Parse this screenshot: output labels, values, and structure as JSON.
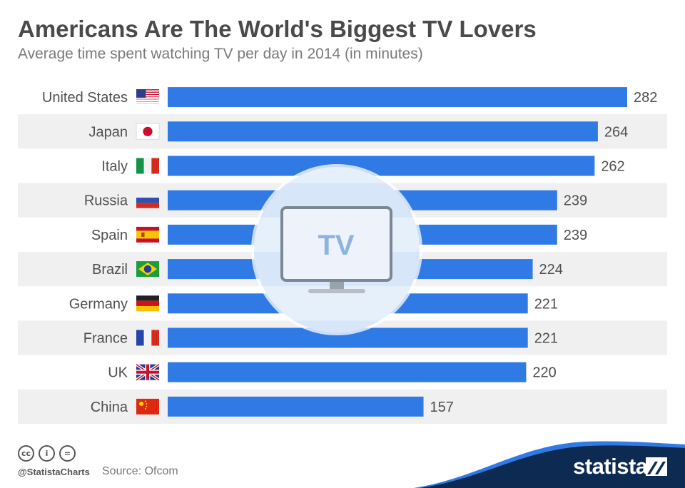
{
  "header": {
    "title": "Americans Are The World's Biggest TV Lovers",
    "subtitle": "Average time spent watching TV per day in 2014 (in minutes)"
  },
  "tv_icon": {
    "label": "TV"
  },
  "chart_data": {
    "type": "bar",
    "orientation": "horizontal",
    "title": "Americans Are The World's Biggest TV Lovers",
    "subtitle": "Average time spent watching TV per day in 2014 (in minutes)",
    "categories": [
      "United States",
      "Japan",
      "Italy",
      "Russia",
      "Spain",
      "Brazil",
      "Germany",
      "France",
      "UK",
      "China"
    ],
    "values": [
      282,
      264,
      262,
      239,
      239,
      224,
      221,
      221,
      220,
      157
    ],
    "flags": [
      "us-flag-icon",
      "japan-flag-icon",
      "italy-flag-icon",
      "russia-flag-icon",
      "spain-flag-icon",
      "brazil-flag-icon",
      "germany-flag-icon",
      "france-flag-icon",
      "uk-flag-icon",
      "china-flag-icon"
    ],
    "xlim": [
      0,
      282
    ],
    "unit": "minutes",
    "bar_color": "#2f7ae5",
    "stripe_color": "#f0f0f0",
    "grid": false,
    "legend": "none"
  },
  "footer": {
    "license_icons": [
      "cc",
      "i",
      "="
    ],
    "handle": "@StatistaCharts",
    "source": "Source: Ofcom"
  },
  "brand": {
    "name": "statista",
    "color": "#0d2b52",
    "accent": "#2f7ae5"
  }
}
